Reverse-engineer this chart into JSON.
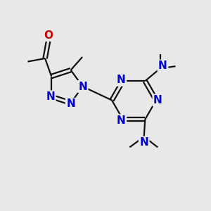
{
  "bg_color": "#e8e8e8",
  "bond_color": "#111111",
  "N_color": "#0000cc",
  "O_color": "#cc0000",
  "lw": 1.6,
  "fs": 11,
  "xlim": [
    0,
    10
  ],
  "ylim": [
    0,
    10
  ]
}
